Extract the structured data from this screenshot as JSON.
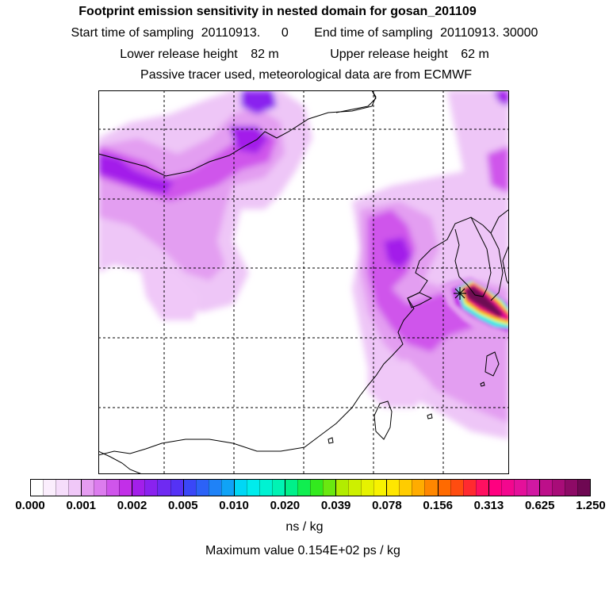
{
  "title": "Footprint emission sensitivity in nested domain for gosan_201109",
  "start_time_label": "Start time of sampling",
  "start_time_value": "20110913.      0",
  "end_time_label": "End time of sampling",
  "end_time_value": "20110913. 30000",
  "lower_release_label": "Lower release height",
  "lower_release_value": "82 m",
  "upper_release_label": "Upper release height",
  "upper_release_value": "62 m",
  "tracer_note": "Passive tracer used, meteorological data are from ECMWF",
  "colorbar": {
    "tick_labels": [
      "0.000",
      "0.001",
      "0.002",
      "0.005",
      "0.010",
      "0.020",
      "0.039",
      "0.078",
      "0.156",
      "0.313",
      "0.625",
      "1.250"
    ],
    "colors": [
      "#ffffff",
      "#fbeefd",
      "#f6ddfb",
      "#f0c8f8",
      "#e59cf1",
      "#dc7cee",
      "#cf55eb",
      "#c22fe8",
      "#a31fea",
      "#8a22ef",
      "#6f2af2",
      "#5532f5",
      "#3a47f7",
      "#2c62f7",
      "#1f82f7",
      "#10a3f6",
      "#00d7f5",
      "#00ecec",
      "#00f2d2",
      "#00f3b4",
      "#00f08a",
      "#10ee50",
      "#33ea1e",
      "#6ae810",
      "#b2ec00",
      "#cdf000",
      "#e6f200",
      "#f8f200",
      "#ffe600",
      "#ffcc00",
      "#ffac00",
      "#ff8700",
      "#ff6a00",
      "#ff4c10",
      "#ff2a30",
      "#ff1060",
      "#ff0080",
      "#f3078e",
      "#e4109a",
      "#d118a2",
      "#bd0f8a",
      "#a80c78",
      "#8d0a66",
      "#6e0852"
    ]
  },
  "unit": "ns / kg",
  "max_value_text": "Maximum value  0.154E+02 ps / kg",
  "receptor_marker": "asterisk-marker"
}
